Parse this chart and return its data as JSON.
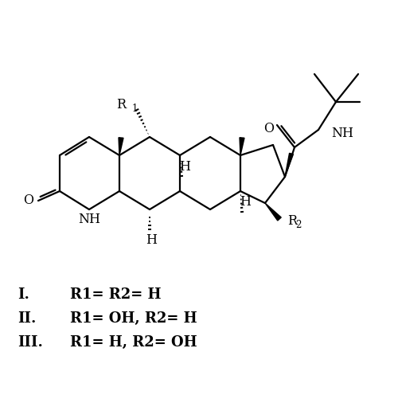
{
  "background_color": "#ffffff",
  "legend_lines": [
    {
      "roman": "I.",
      "text": "R1= R2= H"
    },
    {
      "roman": "II.",
      "text": "R1= OH, R2= H"
    },
    {
      "roman": "III.",
      "text": "R1= H, R2= OH"
    }
  ],
  "figsize": [
    5.0,
    4.96
  ],
  "dpi": 100
}
